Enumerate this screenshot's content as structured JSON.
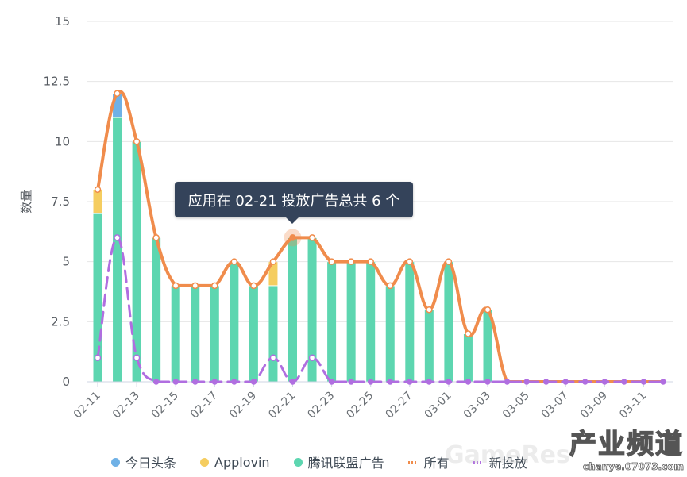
{
  "chart_data": {
    "type": "bar",
    "stacked": true,
    "title": "",
    "xlabel": "",
    "ylabel": "数量",
    "ylim": [
      0,
      15
    ],
    "yticks": [
      "0",
      "2.5",
      "5",
      "7.5",
      "10",
      "12.5",
      "15"
    ],
    "grid": true,
    "legend_position": "bottom",
    "categories": [
      "02-11",
      "02-12",
      "02-13",
      "02-14",
      "02-15",
      "02-16",
      "02-17",
      "02-18",
      "02-19",
      "02-20",
      "02-21",
      "02-22",
      "02-23",
      "02-24",
      "02-25",
      "02-26",
      "02-27",
      "02-28",
      "03-01",
      "03-02",
      "03-03",
      "03-04",
      "03-05",
      "03-06",
      "03-07",
      "03-08",
      "03-09",
      "03-10",
      "03-11",
      "03-12"
    ],
    "xtick_labels": [
      "02-11",
      "02-13",
      "02-15",
      "02-17",
      "02-19",
      "02-21",
      "02-23",
      "02-25",
      "02-27",
      "03-01",
      "03-03",
      "03-05",
      "03-07",
      "03-09",
      "03-11"
    ],
    "series": [
      {
        "name": "腾讯联盟广告",
        "type": "bar",
        "color": "#5dd6b0",
        "values": [
          7,
          11,
          10,
          6,
          4,
          4,
          4,
          5,
          4,
          4,
          6,
          6,
          5,
          5,
          5,
          4,
          5,
          3,
          5,
          2,
          3,
          0,
          0,
          0,
          0,
          0,
          0,
          0,
          0,
          0
        ]
      },
      {
        "name": "今日头条",
        "type": "bar",
        "color": "#6fb1e6",
        "values": [
          0,
          1,
          0,
          0,
          0,
          0,
          0,
          0,
          0,
          0,
          0,
          0,
          0,
          0,
          0,
          0,
          0,
          0,
          0,
          0,
          0,
          0,
          0,
          0,
          0,
          0,
          0,
          0,
          0,
          0
        ]
      },
      {
        "name": "Applovin",
        "type": "bar",
        "color": "#f5cd60",
        "values": [
          1,
          0,
          0,
          0,
          0,
          0,
          0,
          0,
          0,
          1,
          0,
          0,
          0,
          0,
          0,
          0,
          0,
          0,
          0,
          0,
          0,
          0,
          0,
          0,
          0,
          0,
          0,
          0,
          0,
          0
        ]
      },
      {
        "name": "所有",
        "type": "line",
        "style": "smooth",
        "color": "#f08c4c",
        "values": [
          8,
          12,
          10,
          6,
          4,
          4,
          4,
          5,
          4,
          5,
          6,
          6,
          5,
          5,
          5,
          4,
          5,
          3,
          5,
          2,
          3,
          0,
          0,
          0,
          0,
          0,
          0,
          0,
          0,
          0
        ]
      },
      {
        "name": "新投放",
        "type": "line",
        "style": "dashed-smooth",
        "color": "#b06ee0",
        "values": [
          1,
          6,
          1,
          0,
          0,
          0,
          0,
          0,
          0,
          1,
          0,
          1,
          0,
          0,
          0,
          0,
          0,
          0,
          0,
          0,
          0,
          0,
          0,
          0,
          0,
          0,
          0,
          0,
          0,
          0
        ]
      }
    ],
    "annotations": [
      "应用在 02-21 投放广告总共 6 个"
    ]
  },
  "legend": [
    {
      "label": "今日头条",
      "color": "#6fb1e6",
      "kind": "dot"
    },
    {
      "label": "Applovin",
      "color": "#f5cd60",
      "kind": "dot"
    },
    {
      "label": "腾讯联盟广告",
      "color": "#5dd6b0",
      "kind": "dot"
    },
    {
      "label": "所有",
      "color": "#f08c4c",
      "kind": "dash"
    },
    {
      "label": "新投放",
      "color": "#b06ee0",
      "kind": "dash"
    }
  ],
  "tooltip": {
    "text": "应用在 02-21 投放广告总共 6 个",
    "date": "02-21",
    "total": 6
  },
  "watermark": {
    "main": "产业频道",
    "sub": "chanye.07073.com",
    "faint": "GameRes"
  }
}
